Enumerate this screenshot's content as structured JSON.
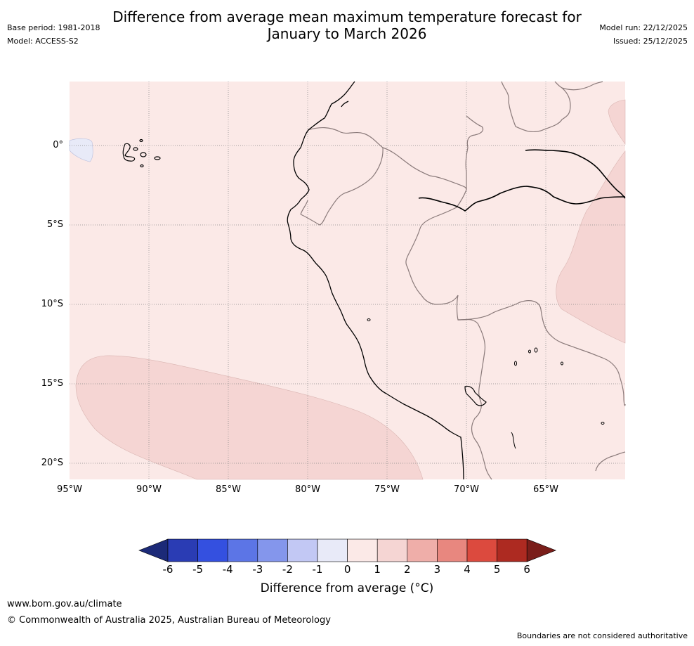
{
  "header": {
    "title_line1": "Difference from average mean maximum temperature forecast for",
    "title_line2": "January to March 2026",
    "base_period": "Base period: 1981-2018",
    "model": "Model: ACCESS-S2",
    "model_run": "Model run: 22/12/2025",
    "issued": "Issued: 25/12/2025"
  },
  "map": {
    "latitude_labels": [
      "0°",
      "5°S",
      "10°S",
      "15°S",
      "20°S"
    ],
    "longitude_labels": [
      "95°W",
      "90°W",
      "85°W",
      "80°W",
      "75°W",
      "70°W",
      "65°W"
    ],
    "background_category": "0 to 1",
    "colors": {
      "land_ocean_fill": "#fbe9e7",
      "warmer_patch": "#f5d5d3",
      "cooler_patch": "#e8eaf8",
      "coastline": "#000000",
      "borders": "#8a7a7a",
      "gridline": "#888888"
    }
  },
  "colorbar": {
    "ticks": [
      "-6",
      "-5",
      "-4",
      "-3",
      "-2",
      "-1",
      "0",
      "1",
      "2",
      "3",
      "4",
      "5",
      "6"
    ],
    "colors": [
      "#1c2a78",
      "#2a3cb4",
      "#3450e0",
      "#5c75e6",
      "#8496ec",
      "#c2c8f4",
      "#e8eaf8",
      "#fbe9e7",
      "#f5d5d3",
      "#efaea9",
      "#e8877f",
      "#dc4a3e",
      "#ad2a21",
      "#7a1e1a"
    ],
    "title": "Difference from average (°C)"
  },
  "footer": {
    "url": "www.bom.gov.au/climate",
    "copyright": "© Commonwealth of Australia 2025, Australian Bureau of Meteorology",
    "disclaimer": "Boundaries are not considered authoritative"
  }
}
